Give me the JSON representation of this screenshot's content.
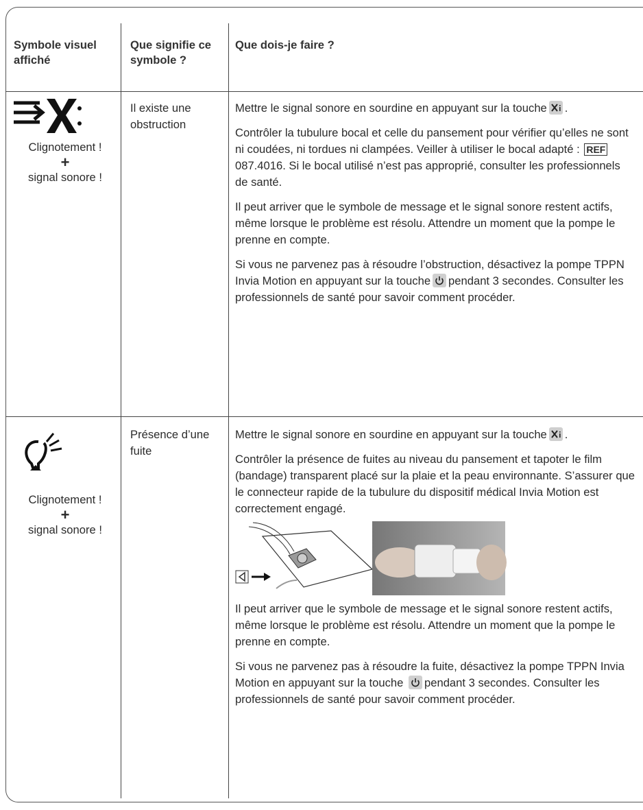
{
  "table": {
    "header": [
      "Symbole visuel affiché",
      "Que signifie ce symbole ?",
      "Que dois-je faire ?"
    ],
    "rows": [
      {
        "symbol": [
          "Clignotement !",
          "+",
          "signal sonore !"
        ],
        "meaning": "Il existe une obstruction",
        "actions": [
          [
            "Mettre le signal sonore en sourdine en appuyant sur la touche",
            "."
          ],
          [
            "Contrôler la tubulure bocal et celle du pansement pour vérifier qu’elles ne sont ni coudées, ni tordues ni clampées. Veiller à utiliser le bocal adapté :",
            "REF",
            "087.4016. Si le bocal utilisé n’est pas approprié, consulter les professionnels de santé."
          ],
          [
            "Il peut arriver que le symbole de message et le signal sonore restent actifs, même lorsque le problème est résolu. Attendre un moment que la pompe le prenne en compte."
          ],
          [
            "Si vous ne parvenez pas à résoudre l’obstruction, désactivez la pompe TPPN Invia Motion en appuyant sur la touche",
            "pendant 3 secondes. Consulter les professionnels de santé pour savoir comment procéder."
          ]
        ]
      },
      {
        "symbol": [
          "Clignotement !",
          "+",
          "signal sonore !"
        ],
        "meaning": "Présence d’une fuite",
        "actions": [
          [
            "Mettre le signal sonore en sourdine en appuyant sur la touche",
            "."
          ],
          [
            "Contrôler la présence de fuites au niveau du pansement et tapoter le film (bandage) transparent placé sur la plaie et la peau environnante. S’assurer que le connecteur rapide de la tubulure du dispositif médical Invia Motion est correctement engagé."
          ],
          [
            "Il peut arriver que le symbole de message et le signal sonore restent actifs, même lorsque le problème est résolu. Attendre un moment que la pompe le prenne en compte."
          ],
          [
            "Si vous ne parvenez pas à résoudre la fuite, désactivez la pompe TPPN Invia Motion en appuyant sur la touche",
            "pendant 3 secondes. Consulter les professionnels de santé pour savoir comment procéder."
          ]
        ]
      }
    ]
  }
}
